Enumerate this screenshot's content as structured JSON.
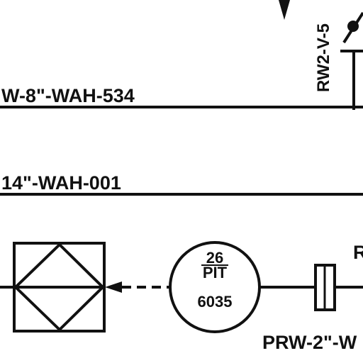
{
  "drawing": {
    "line_top_label": "W-8\"-WAH-534",
    "line_mid_label": "14\"-WAH-001",
    "valve_tag": "RW2-V-5",
    "bottom_right_label": "PRW-2\"-W",
    "right_edge_letter": "R",
    "instrument": {
      "number_top": "26",
      "type": "PIT",
      "number_bottom": "6035"
    }
  },
  "colors": {
    "ink": "#111111",
    "paper": "#ffffff"
  }
}
